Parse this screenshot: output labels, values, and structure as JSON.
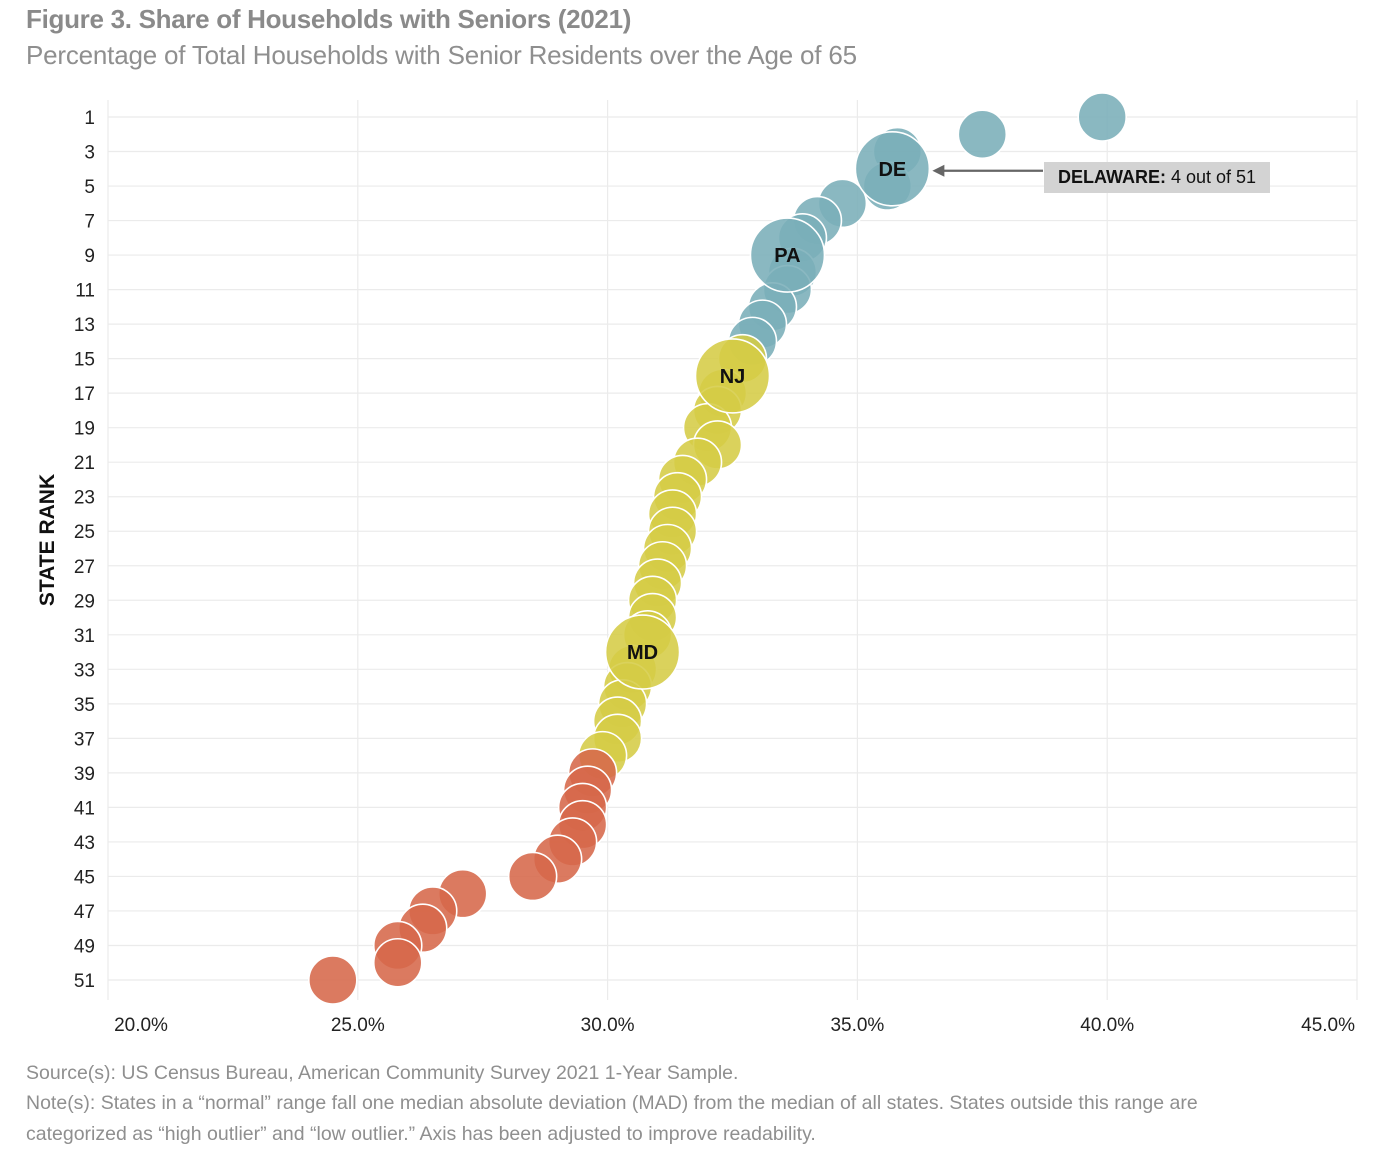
{
  "title": "Figure 3. Share of Households with Seniors (2021)",
  "subtitle": "Percentage of Total Households with Senior Residents over the Age of 65",
  "chart_data": {
    "type": "scatter",
    "xlabel": "",
    "ylabel": "STATE RANK",
    "xlim": [
      20,
      45
    ],
    "ylim": [
      51,
      1
    ],
    "x_ticks": [
      "20.0%",
      "25.0%",
      "30.0%",
      "35.0%",
      "40.0%",
      "45.0%"
    ],
    "y_ticks": [
      "1",
      "3",
      "5",
      "7",
      "9",
      "11",
      "13",
      "15",
      "17",
      "19",
      "21",
      "23",
      "25",
      "27",
      "29",
      "31",
      "33",
      "35",
      "37",
      "39",
      "41",
      "43",
      "45",
      "47",
      "49",
      "51"
    ],
    "grid": true,
    "colors": {
      "high": "#7aaeb8",
      "normal": "#d5cc45",
      "low": "#d6684a"
    },
    "points": [
      {
        "rank": 1,
        "value": 39.9,
        "group": "high"
      },
      {
        "rank": 2,
        "value": 37.5,
        "group": "high"
      },
      {
        "rank": 3,
        "value": 35.8,
        "group": "high"
      },
      {
        "rank": 4,
        "value": 35.7,
        "group": "high",
        "label": "DE",
        "highlight": true
      },
      {
        "rank": 5,
        "value": 35.6,
        "group": "high"
      },
      {
        "rank": 6,
        "value": 34.7,
        "group": "high"
      },
      {
        "rank": 7,
        "value": 34.2,
        "group": "high"
      },
      {
        "rank": 8,
        "value": 33.9,
        "group": "high"
      },
      {
        "rank": 9,
        "value": 33.6,
        "group": "high",
        "label": "PA",
        "highlight": true
      },
      {
        "rank": 10,
        "value": 33.7,
        "group": "high"
      },
      {
        "rank": 11,
        "value": 33.6,
        "group": "high"
      },
      {
        "rank": 12,
        "value": 33.3,
        "group": "high"
      },
      {
        "rank": 13,
        "value": 33.1,
        "group": "high"
      },
      {
        "rank": 14,
        "value": 32.9,
        "group": "high"
      },
      {
        "rank": 15,
        "value": 32.7,
        "group": "normal"
      },
      {
        "rank": 16,
        "value": 32.5,
        "group": "normal",
        "label": "NJ",
        "highlight": true
      },
      {
        "rank": 17,
        "value": 32.3,
        "group": "normal"
      },
      {
        "rank": 18,
        "value": 32.2,
        "group": "normal"
      },
      {
        "rank": 19,
        "value": 32.0,
        "group": "normal"
      },
      {
        "rank": 20,
        "value": 32.2,
        "group": "normal"
      },
      {
        "rank": 21,
        "value": 31.8,
        "group": "normal"
      },
      {
        "rank": 22,
        "value": 31.5,
        "group": "normal"
      },
      {
        "rank": 23,
        "value": 31.4,
        "group": "normal"
      },
      {
        "rank": 24,
        "value": 31.3,
        "group": "normal"
      },
      {
        "rank": 25,
        "value": 31.3,
        "group": "normal"
      },
      {
        "rank": 26,
        "value": 31.2,
        "group": "normal"
      },
      {
        "rank": 27,
        "value": 31.1,
        "group": "normal"
      },
      {
        "rank": 28,
        "value": 31.0,
        "group": "normal"
      },
      {
        "rank": 29,
        "value": 30.9,
        "group": "normal"
      },
      {
        "rank": 30,
        "value": 30.9,
        "group": "normal"
      },
      {
        "rank": 31,
        "value": 30.8,
        "group": "normal"
      },
      {
        "rank": 32,
        "value": 30.7,
        "group": "normal",
        "label": "MD",
        "highlight": true
      },
      {
        "rank": 33,
        "value": 30.5,
        "group": "normal"
      },
      {
        "rank": 34,
        "value": 30.4,
        "group": "normal"
      },
      {
        "rank": 35,
        "value": 30.3,
        "group": "normal"
      },
      {
        "rank": 36,
        "value": 30.2,
        "group": "normal"
      },
      {
        "rank": 37,
        "value": 30.2,
        "group": "normal"
      },
      {
        "rank": 38,
        "value": 29.9,
        "group": "normal"
      },
      {
        "rank": 39,
        "value": 29.7,
        "group": "low"
      },
      {
        "rank": 40,
        "value": 29.6,
        "group": "low"
      },
      {
        "rank": 41,
        "value": 29.5,
        "group": "low"
      },
      {
        "rank": 42,
        "value": 29.5,
        "group": "low"
      },
      {
        "rank": 43,
        "value": 29.3,
        "group": "low"
      },
      {
        "rank": 44,
        "value": 29.0,
        "group": "low"
      },
      {
        "rank": 45,
        "value": 28.5,
        "group": "low"
      },
      {
        "rank": 46,
        "value": 27.1,
        "group": "low"
      },
      {
        "rank": 47,
        "value": 26.5,
        "group": "low"
      },
      {
        "rank": 48,
        "value": 26.3,
        "group": "low"
      },
      {
        "rank": 49,
        "value": 25.8,
        "group": "low"
      },
      {
        "rank": 50,
        "value": 25.8,
        "group": "low"
      },
      {
        "rank": 51,
        "value": 24.5,
        "group": "low"
      }
    ],
    "annotation": {
      "state": "DELAWARE:",
      "text": "4 out of 51"
    }
  },
  "footer": {
    "source": "Source(s): US Census Bureau, American Community Survey 2021 1-Year Sample.",
    "note_line1": "Note(s): States in a “normal” range fall one median absolute deviation (MAD) from the median of all states. States outside this range are",
    "note_line2": "categorized as “high outlier” and “low outlier.” Axis has been adjusted to improve readability."
  }
}
